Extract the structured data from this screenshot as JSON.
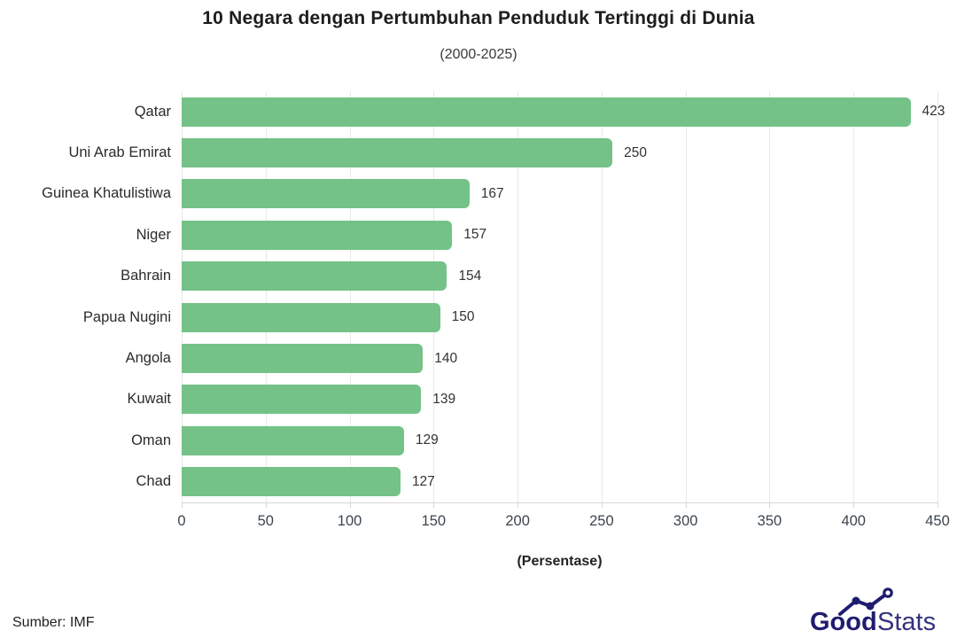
{
  "chart_data": {
    "type": "bar",
    "orientation": "horizontal",
    "title": "10 Negara dengan Pertumbuhan Penduduk Tertinggi di Dunia",
    "subtitle": "(2000-2025)",
    "categories": [
      "Qatar",
      "Uni Arab Emirat",
      "Guinea Khatulistiwa",
      "Niger",
      "Bahrain",
      "Papua Nugini",
      "Angola",
      "Kuwait",
      "Oman",
      "Chad"
    ],
    "values": [
      423,
      250,
      167,
      157,
      154,
      150,
      140,
      139,
      129,
      127
    ],
    "xlabel": "(Persentase)",
    "xlim": [
      0,
      450
    ],
    "xticks": [
      0,
      50,
      100,
      150,
      200,
      250,
      300,
      350,
      400,
      450
    ],
    "grid": true,
    "legend": "none",
    "bar_color": "#74c287",
    "gridline_color": "#e8e8e8",
    "axis_color": "#d6d6d6"
  },
  "footer": {
    "source": "Sumber: IMF"
  },
  "logo": {
    "bold_part": "Good",
    "light_part": "Stats",
    "color": "#1f1c70",
    "icon": "line-chart-doodle-icon"
  }
}
